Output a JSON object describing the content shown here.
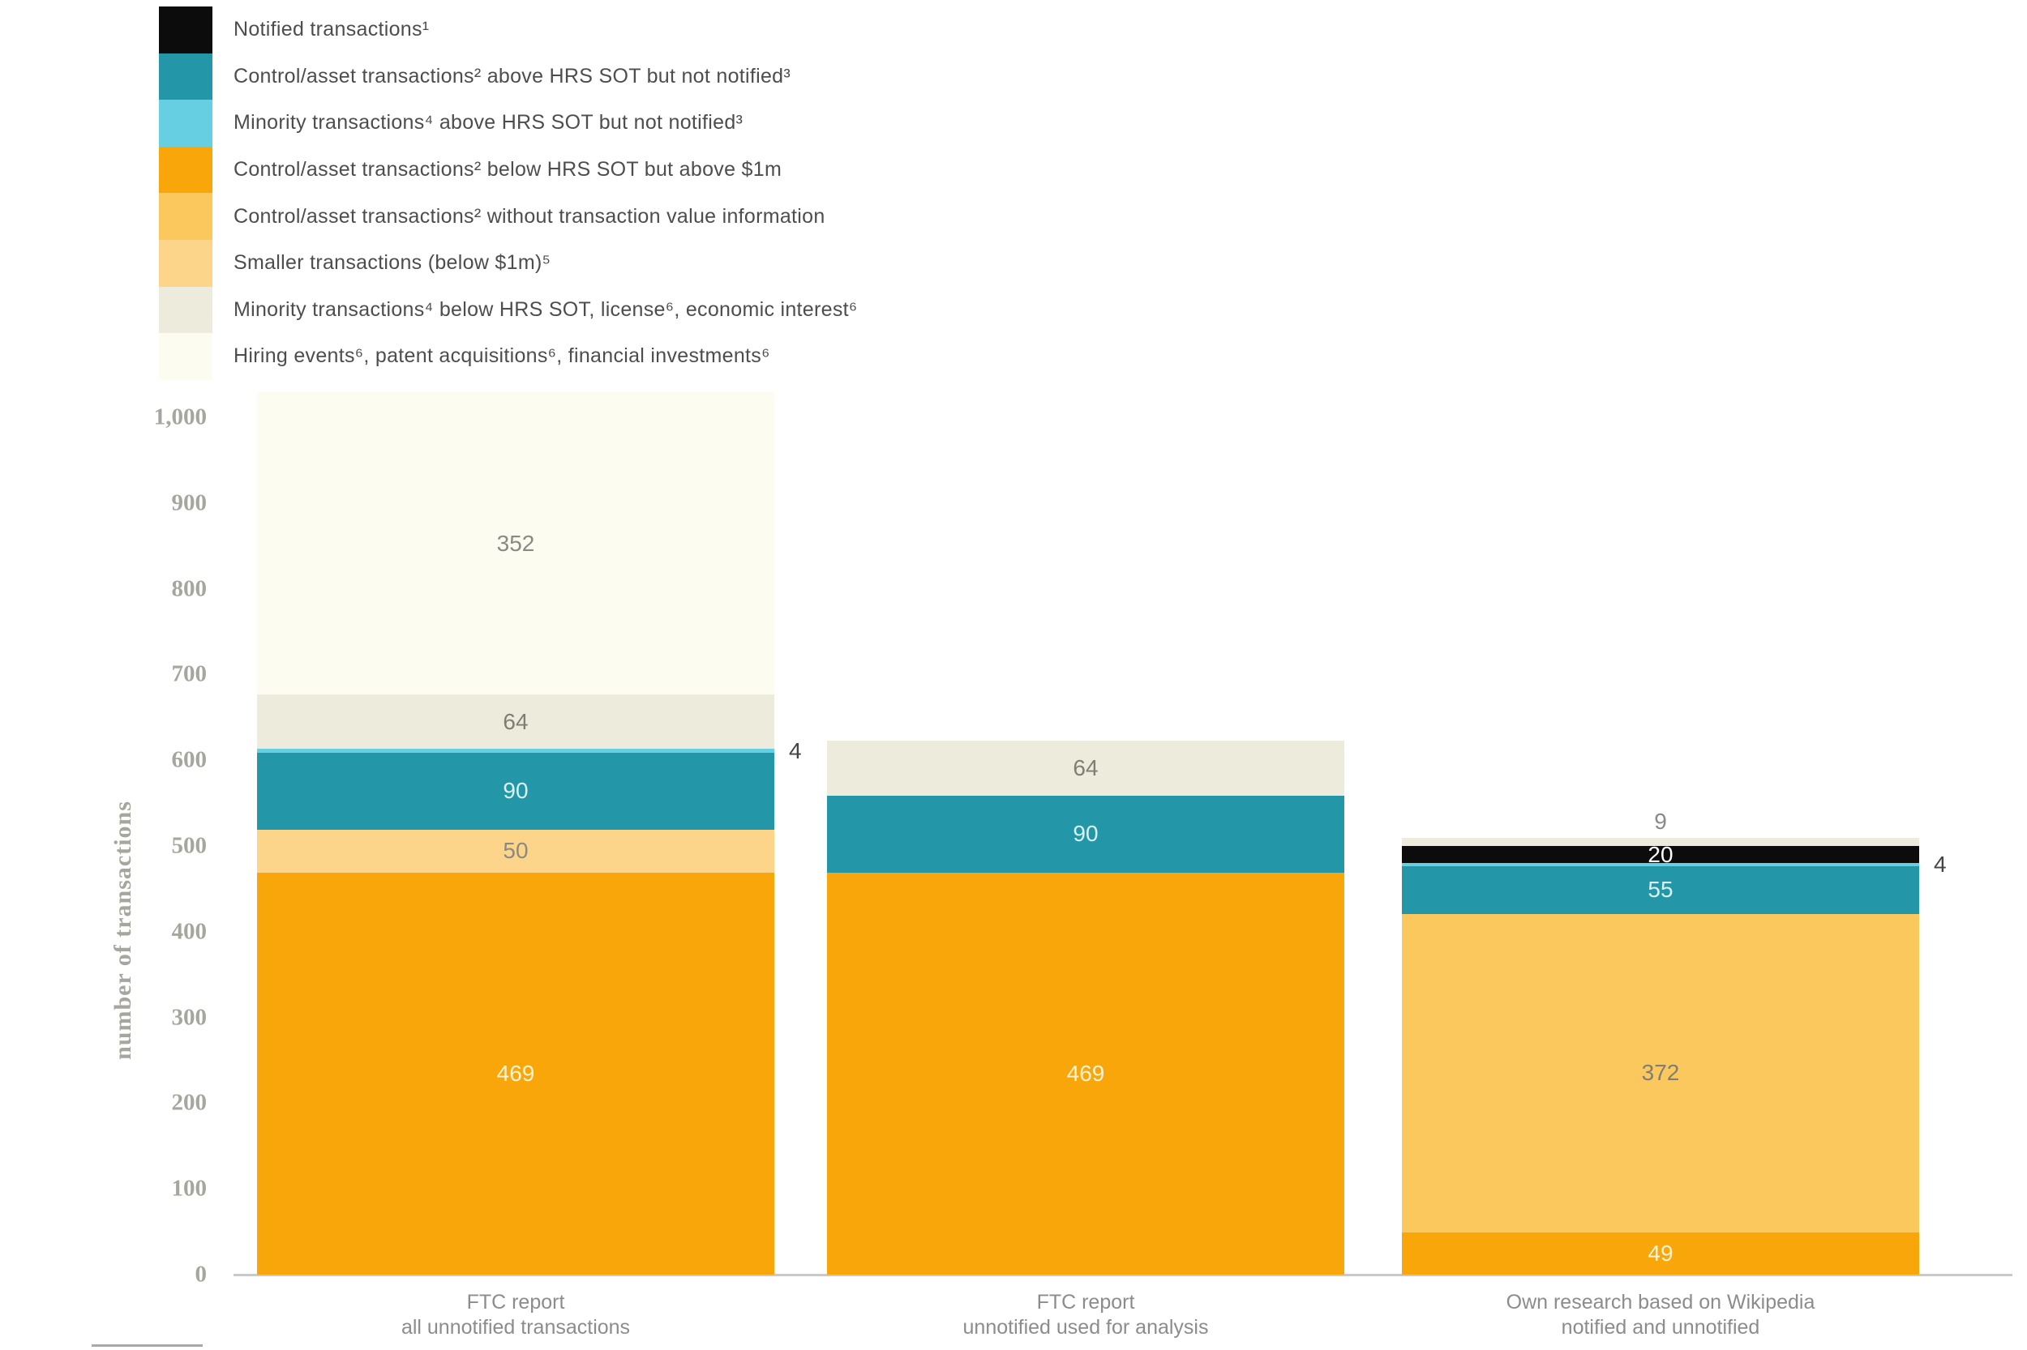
{
  "page": {
    "background": "#ffffff"
  },
  "y_axis": {
    "title": "number of transactions",
    "ticks": [
      "0",
      "100",
      "200",
      "300",
      "400",
      "500",
      "600",
      "700",
      "800",
      "900",
      "1,000"
    ],
    "min": 0,
    "max": 1000
  },
  "chart_data": {
    "type": "bar",
    "stacked": true,
    "grid": false,
    "legend_position": "top-left",
    "ylabel": "number of transactions",
    "ylim": [
      0,
      1000
    ],
    "categories": [
      [
        "FTC report",
        "all unnotified transactions"
      ],
      [
        "FTC report",
        "unnotified used for analysis"
      ],
      [
        "Own research based on Wikipedia",
        "notified and unnotified"
      ]
    ],
    "series": [
      {
        "name": "Notified transactions¹",
        "color": "#0c0c0c",
        "label_color": "#ffffff",
        "values": [
          0,
          0,
          20
        ]
      },
      {
        "name": "Control/asset transactions² above HRS SOT but not notified³",
        "color": "#2396a7",
        "label_color": "#d9f2f4",
        "values": [
          90,
          90,
          55
        ]
      },
      {
        "name": "Minority transactions⁴ above HRS SOT but not notified³",
        "color": "#66cfe2",
        "label_color": "#454545",
        "small_label_side": "right",
        "outside_label_color": "#454545",
        "values": [
          4,
          0,
          4
        ]
      },
      {
        "name": "Control/asset transactions² below HRS SOT but above $1m",
        "color": "#f9a60b",
        "label_color": "#fdf4d6",
        "values": [
          469,
          469,
          49
        ]
      },
      {
        "name": "Control/asset transactions² without transaction value information",
        "color": "#fbc85e",
        "label_color": "#7e7e76",
        "values": [
          0,
          0,
          372
        ]
      },
      {
        "name": "Smaller transactions (below $1m)⁵",
        "color": "#fcd58b",
        "label_color": "#8a8a80",
        "values": [
          50,
          0,
          0
        ]
      },
      {
        "name": "Minority transactions⁴ below HRS SOT, license⁶, economic interest⁶",
        "color": "#edebdc",
        "label_color": "#7e7e74",
        "small_label_side": "top",
        "outside_label_color": "#8a8a8a",
        "values": [
          64,
          64,
          9
        ]
      },
      {
        "name": "Hiring events⁶, patent acquisitions⁶, financial investments⁶",
        "color": "#fdfcf0",
        "label_color": "#8a8a84",
        "values": [
          352,
          0,
          0
        ]
      }
    ],
    "stack_order": [
      3,
      4,
      5,
      1,
      2,
      0,
      6,
      7
    ]
  }
}
